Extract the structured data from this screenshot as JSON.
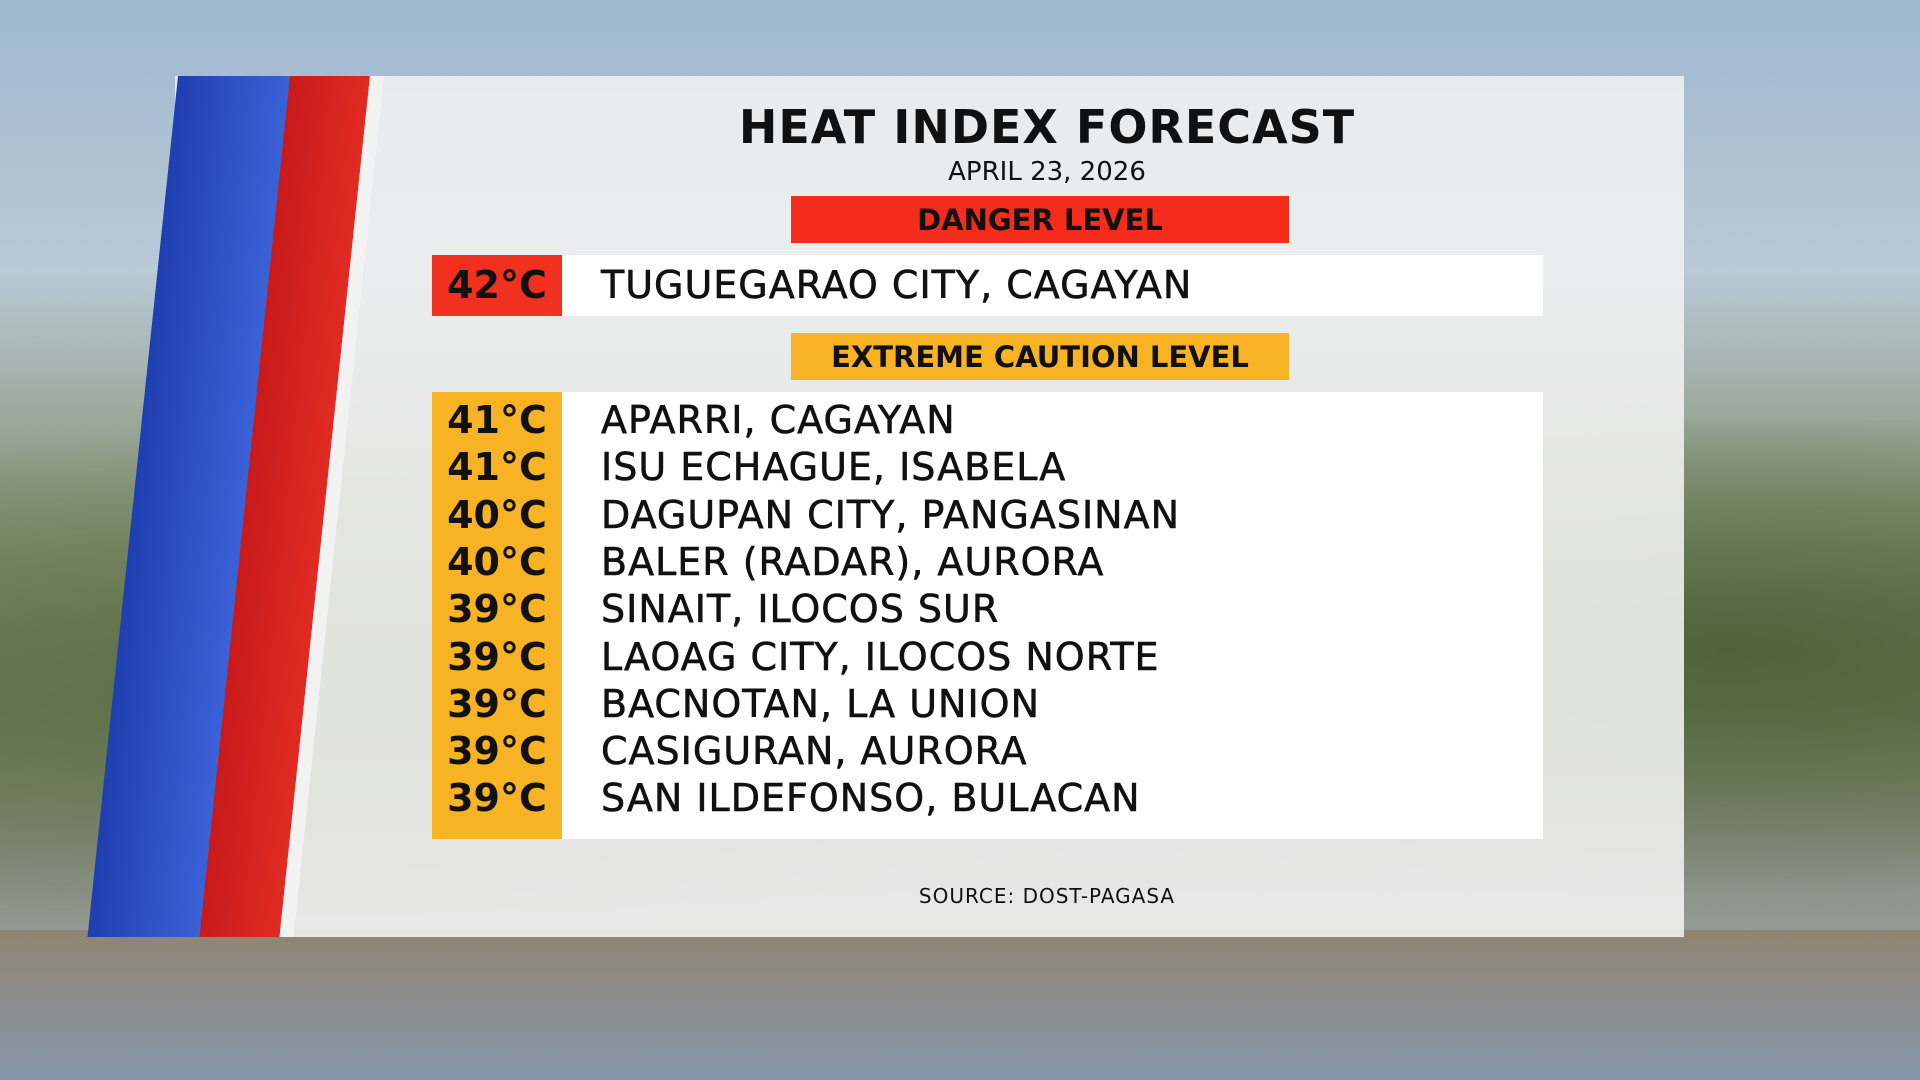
{
  "header": {
    "title": "HEAT INDEX FORECAST",
    "date": "APRIL 23, 2026"
  },
  "sections": [
    {
      "level": "DANGER LEVEL",
      "rows": [
        [
          "42°C",
          "TUGUEGARAO CITY, CAGAYAN"
        ]
      ]
    },
    {
      "level": "EXTREME CAUTION LEVEL",
      "rows": [
        [
          "41°C",
          "APARRI, CAGAYAN"
        ],
        [
          "41°C",
          "ISU ECHAGUE, ISABELA"
        ],
        [
          "40°C",
          "DAGUPAN CITY, PANGASINAN"
        ],
        [
          "40°C",
          "BALER (RADAR), AURORA"
        ],
        [
          "39°C",
          "SINAIT, ILOCOS SUR"
        ],
        [
          "39°C",
          "LAOAG CITY, ILOCOS NORTE"
        ],
        [
          "39°C",
          "BACNOTAN, LA UNION"
        ],
        [
          "39°C",
          "CASIGURAN, AURORA"
        ],
        [
          "39°C",
          "SAN ILDEFONSO, BULACAN"
        ]
      ]
    }
  ],
  "source": "SOURCE: DOST-PAGASA"
}
